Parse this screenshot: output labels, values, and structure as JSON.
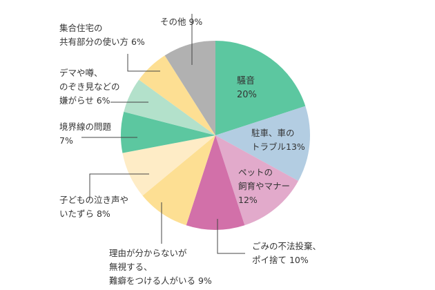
{
  "chart_data": {
    "type": "pie",
    "start": "top",
    "direction": "clockwise",
    "slices": [
      {
        "lines": [
          "騒音",
          "20%"
        ],
        "value": 20,
        "color": "#5cc7a0"
      },
      {
        "lines": [
          "駐車、車の",
          "トラブル13%"
        ],
        "value": 13,
        "color": "#b3cde2"
      },
      {
        "lines": [
          "ペットの",
          "飼育やマナー",
          "12%"
        ],
        "value": 12,
        "color": "#e2aacb"
      },
      {
        "lines": [
          "ごみの不法投棄、",
          "ポイ捨て 10%"
        ],
        "value": 10,
        "color": "#d270a9"
      },
      {
        "lines": [
          "理由が分からないが",
          "無視する、",
          "難癖をつける人がいる 9%"
        ],
        "value": 9,
        "color": "#fddf93"
      },
      {
        "lines": [
          "子どもの泣き声や",
          "いたずら 8%"
        ],
        "value": 8,
        "color": "#feecc6"
      },
      {
        "lines": [
          "境界線の問題",
          "7%"
        ],
        "value": 7,
        "color": "#5cc7a0"
      },
      {
        "lines": [
          "デマや噂、",
          "のぞき見などの",
          "嫌がらせ 6%"
        ],
        "value": 6,
        "color": "#b3e1cb"
      },
      {
        "lines": [
          "集合住宅の",
          "共有部分の使い方 6%"
        ],
        "value": 6,
        "color": "#fddf93"
      },
      {
        "lines": [
          "その他 9%"
        ],
        "value": 9,
        "color": "#b1b1b1"
      }
    ]
  }
}
